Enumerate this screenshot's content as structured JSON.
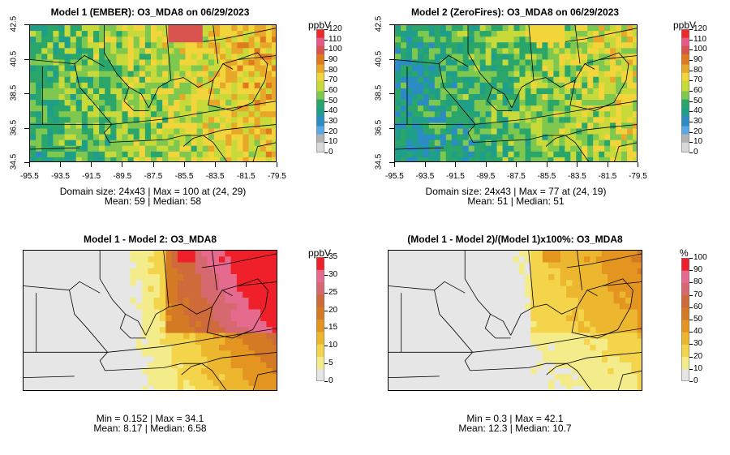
{
  "panels": [
    {
      "title": "Model 1 (EMBER): O3_MDA8 on 06/29/2023",
      "stats_line1": "Domain size: 24x43 | Max = 100 at (24, 29)",
      "stats_line2": "Mean: 59 |  Median: 58",
      "unit": "ppbV",
      "legend_ticks": [
        "0",
        "10",
        "20",
        "30",
        "40",
        "50",
        "60",
        "70",
        "80",
        "90",
        "100",
        "110",
        "120"
      ],
      "legend_max": 120,
      "palette": "full",
      "show_axes": true,
      "mean": 59,
      "max": 100
    },
    {
      "title": "Model 2 (ZeroFires): O3_MDA8 on 06/29/2023",
      "stats_line1": "Domain size: 24x43 | Max = 77 at (24, 19)",
      "stats_line2": "Mean: 51 |  Median: 51",
      "unit": "ppbV",
      "legend_ticks": [
        "0",
        "10",
        "20",
        "30",
        "40",
        "50",
        "60",
        "70",
        "80",
        "90",
        "100",
        "110",
        "120"
      ],
      "legend_max": 120,
      "palette": "full",
      "show_axes": true,
      "mean": 51,
      "max": 77
    },
    {
      "title": "Model 1 - Model 2: O3_MDA8",
      "stats_line1": "Min = 0.152 | Max = 34.1",
      "stats_line2": "Mean: 8.17 |  Median: 6.58",
      "unit": "ppbV",
      "legend_ticks": [
        "0",
        "5",
        "10",
        "15",
        "20",
        "25",
        "30",
        "35"
      ],
      "legend_max": 35,
      "palette": "warm",
      "show_axes": false,
      "mean": 8.17,
      "max": 34.1
    },
    {
      "title": "(Model 1 - Model 2)/(Model 1)x100%: O3_MDA8",
      "stats_line1": "Min = 0.3 | Max = 42.1",
      "stats_line2": "Mean: 12.3 |  Median: 10.7",
      "unit": "%",
      "legend_ticks": [
        "0",
        "10",
        "20",
        "30",
        "40",
        "50",
        "60",
        "70",
        "80",
        "90",
        "100"
      ],
      "legend_max": 100,
      "palette": "warm",
      "show_axes": false,
      "mean": 12.3,
      "max": 42.1
    }
  ],
  "x_ticks": [
    "-95.5",
    "-93.5",
    "-91.5",
    "-89.5",
    "-87.5",
    "-85.5",
    "-83.5",
    "-81.5",
    "-79.5"
  ],
  "y_ticks": [
    "34.5",
    "36.5",
    "38.5",
    "40.5",
    "42.5"
  ],
  "grid": {
    "rows": 24,
    "cols": 43,
    "lon_range": [
      -95.5,
      -79.5
    ],
    "lat_range": [
      34.5,
      42.5
    ]
  },
  "colors": {
    "full": [
      "#d9d9d9",
      "#b3b3b3",
      "#5aa9e6",
      "#2b8cc4",
      "#1f9e89",
      "#2aa66a",
      "#7ec850",
      "#c8d93a",
      "#f2d43b",
      "#e9a72a",
      "#e07a1f",
      "#d9534f",
      "#e85a8a",
      "#f02a2a"
    ],
    "warm": [
      "#e6e6e6",
      "#f4ec8a",
      "#f3d44a",
      "#ecb62e",
      "#e39520",
      "#d47a24",
      "#cf6a3a",
      "#d6686f",
      "#e56a8e",
      "#f0202a"
    ]
  }
}
